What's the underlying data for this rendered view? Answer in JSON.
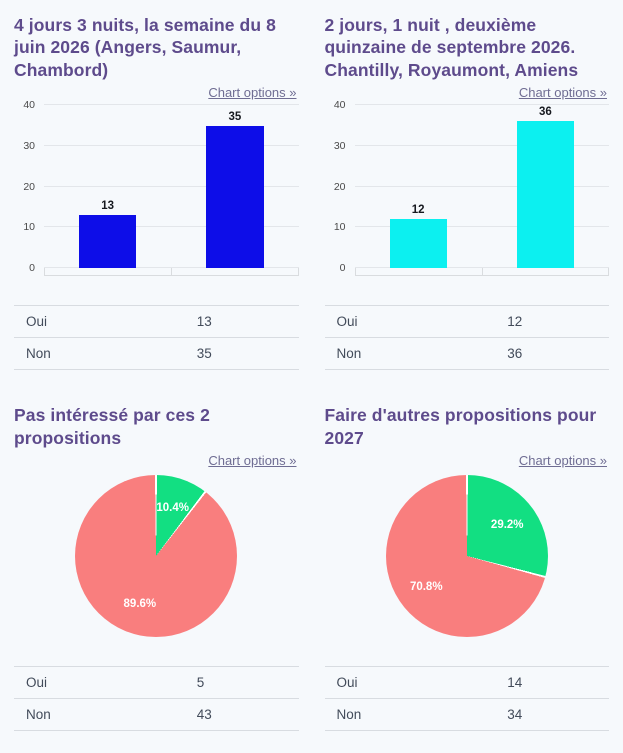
{
  "labels": {
    "chart_options": "Chart options »"
  },
  "chart_data": [
    {
      "type": "bar",
      "title": "4 jours 3 nuits, la semaine du 8 juin 2026 (Angers, Saumur, Chambord)",
      "categories": [
        "Oui",
        "Non"
      ],
      "values": [
        13,
        35
      ],
      "value_labels": [
        "13",
        "35"
      ],
      "ylim": [
        0,
        40
      ],
      "yticks": [
        0,
        10,
        20,
        30,
        40
      ],
      "bar_color": "#0d0de8",
      "grid": true,
      "legend": "none"
    },
    {
      "type": "bar",
      "title": "2 jours, 1 nuit , deuxième quinzaine de septembre 2026. Chantilly, Royaumont, Amiens",
      "categories": [
        "Oui",
        "Non"
      ],
      "values": [
        12,
        36
      ],
      "value_labels": [
        "12",
        "36"
      ],
      "ylim": [
        0,
        40
      ],
      "yticks": [
        0,
        10,
        20,
        30,
        40
      ],
      "bar_color": "#0cf0f0",
      "grid": true,
      "legend": "none"
    },
    {
      "type": "pie",
      "title": "Pas intéressé par ces 2 propositions",
      "categories": [
        "Oui",
        "Non"
      ],
      "values": [
        5,
        43
      ],
      "slice_labels": [
        "10.4%",
        "89.6%"
      ],
      "colors": [
        "#12df82",
        "#f97e7e"
      ],
      "start_angle_deg": 0,
      "legend": "none"
    },
    {
      "type": "pie",
      "title": "Faire d'autres propositions pour 2027",
      "categories": [
        "Oui",
        "Non"
      ],
      "values": [
        14,
        34
      ],
      "slice_labels": [
        "29.2%",
        "70.8%"
      ],
      "colors": [
        "#12df82",
        "#f97e7e"
      ],
      "start_angle_deg": 0,
      "legend": "none"
    }
  ],
  "tables": [
    {
      "rows": [
        {
          "label": "Oui",
          "value": "13"
        },
        {
          "label": "Non",
          "value": "35"
        }
      ]
    },
    {
      "rows": [
        {
          "label": "Oui",
          "value": "12"
        },
        {
          "label": "Non",
          "value": "36"
        }
      ]
    },
    {
      "rows": [
        {
          "label": "Oui",
          "value": "5"
        },
        {
          "label": "Non",
          "value": "43"
        }
      ]
    },
    {
      "rows": [
        {
          "label": "Oui",
          "value": "14"
        },
        {
          "label": "Non",
          "value": "34"
        }
      ]
    }
  ],
  "colors": {
    "page_bg": "#f6f9fc",
    "title": "#5e4b8c",
    "link": "#6f6d93",
    "gridline": "#e3e6ea",
    "axis": "#d9dcdf",
    "table_border": "#d8dce1",
    "table_text": "#424b5a"
  }
}
